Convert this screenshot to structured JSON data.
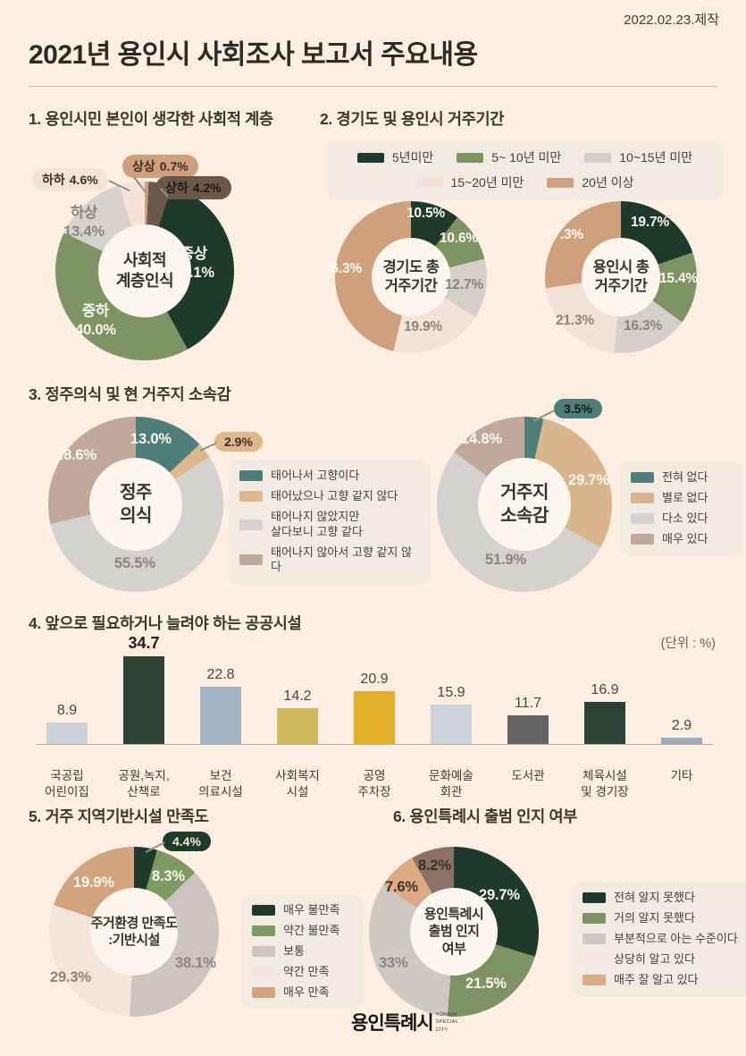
{
  "header": {
    "date": "2022.02.23.제작",
    "title": "2021년 용인시 사회조사 보고서 주요내용"
  },
  "sections": {
    "s1": {
      "heading": "1. 용인시민 본인이 생각한 사회적 계층"
    },
    "s2": {
      "heading": "2. 경기도 및 용인시 거주기간"
    },
    "s3": {
      "heading": "3. 정주의식 및 현 거주지 소속감"
    },
    "s4": {
      "heading": "4. 앞으로 필요하거나 늘려야 하는 공공시설",
      "unit": "(단위 : %)"
    },
    "s5": {
      "heading": "5. 거주 지역기반시설 만족도"
    },
    "s6": {
      "heading": "6. 용인특례시 출범 인지 여부"
    }
  },
  "chart_data": [
    {
      "id": "social-class",
      "type": "donut",
      "title": "사회적 계층인식",
      "center": [
        "사회적",
        "계층인식"
      ],
      "segments": [
        {
          "label": "상상",
          "value": 0.7,
          "pct": "0.7%",
          "color": "#cfa07e"
        },
        {
          "label": "상하",
          "value": 4.2,
          "pct": "4.2%",
          "color": "#6b5848"
        },
        {
          "label": "중상",
          "value": 37.1,
          "pct": "37.1%",
          "color": "#1e3a2c"
        },
        {
          "label": "중하",
          "value": 40.0,
          "pct": "40.0%",
          "color": "#7e9465"
        },
        {
          "label": "하상",
          "value": 13.4,
          "pct": "13.4%",
          "color": "#d8d2ce"
        },
        {
          "label": "하하",
          "value": 4.6,
          "pct": "4.6%",
          "color": "#f5e3da"
        }
      ]
    },
    {
      "id": "gyeonggi-residence",
      "type": "donut",
      "title": "경기도 총 거주기간",
      "center": [
        "경기도 총",
        "거주기간"
      ],
      "segments": [
        {
          "label": "5년미만",
          "value": 10.5,
          "pct": "10.5%",
          "color": "#1e3a2c"
        },
        {
          "label": "5~ 10년 미만",
          "value": 10.6,
          "pct": "10.6%",
          "color": "#7d9363"
        },
        {
          "label": "10~15년 미만",
          "value": 12.7,
          "pct": "12.7%",
          "color": "#d5cfca"
        },
        {
          "label": "15~20년 미만",
          "value": 19.9,
          "pct": "19.9%",
          "color": "#f2e2da"
        },
        {
          "label": "20년 이상",
          "value": 46.3,
          "pct": "46.3%",
          "color": "#cfa07e"
        }
      ],
      "legend": [
        {
          "label": "5년미만",
          "color": "#1e3a2c"
        },
        {
          "label": "5~ 10년 미만",
          "color": "#7d9363"
        },
        {
          "label": "10~15년 미만",
          "color": "#d5cfca"
        },
        {
          "label": "15~20년 미만",
          "color": "#f2e2da"
        },
        {
          "label": "20년 이상",
          "color": "#cfa07e"
        }
      ]
    },
    {
      "id": "yongin-residence",
      "type": "donut",
      "title": "용인시 총 거주기간",
      "center": [
        "용인시 총",
        "거주기간"
      ],
      "segments": [
        {
          "label": "5년미만",
          "value": 19.7,
          "pct": "19.7%",
          "color": "#1e3a2c"
        },
        {
          "label": "5~ 10년 미만",
          "value": 15.4,
          "pct": "15.4%",
          "color": "#7d9363"
        },
        {
          "label": "10~15년 미만",
          "value": 16.3,
          "pct": "16.3%",
          "color": "#d5cfca"
        },
        {
          "label": "15~20년 미만",
          "value": 21.3,
          "pct": "21.3%",
          "color": "#f2e2da"
        },
        {
          "label": "20년 이상",
          "value": 27.3,
          "pct": "27.3%",
          "color": "#cfa07e"
        }
      ]
    },
    {
      "id": "settlement",
      "type": "donut",
      "title": "정주의식",
      "center": [
        "정주",
        "의식"
      ],
      "segments": [
        {
          "label": "태어나서 고향이다",
          "value": 13.0,
          "pct": "13.0%",
          "color": "#4f7e78"
        },
        {
          "label": "태어났으나 고향 같지 않다",
          "value": 2.9,
          "pct": "2.9%",
          "color": "#ddb88e"
        },
        {
          "label": "태어나지 않았지만 살다보니 고향 같다",
          "value": 55.5,
          "pct": "55.5%",
          "color": "#d4d2cf"
        },
        {
          "label": "태어나지 않아서 고향 같지 않다",
          "value": 28.6,
          "pct": "28.6%",
          "color": "#c0a89b"
        }
      ],
      "legend": [
        {
          "label": "태어나서 고향이다",
          "color": "#4f7e78"
        },
        {
          "label": "태어났으나 고향 같지 않다",
          "color": "#ddb88e"
        },
        {
          "label": "태어나지 않았지만\n살다보니 고향 같다",
          "color": "#d4d2cf"
        },
        {
          "label": "태어나지 않아서 고향 같지 않다",
          "color": "#c0a89b"
        }
      ]
    },
    {
      "id": "belonging",
      "type": "donut",
      "title": "거주지 소속감",
      "center": [
        "거주지",
        "소속감"
      ],
      "segments": [
        {
          "label": "전혀 없다",
          "value": 3.5,
          "pct": "3.5%",
          "color": "#4f7e78"
        },
        {
          "label": "별로 없다",
          "value": 29.7,
          "pct": "29.7%",
          "color": "#d9b68e"
        },
        {
          "label": "다소 있다",
          "value": 51.9,
          "pct": "51.9%",
          "color": "#d4d2cf"
        },
        {
          "label": "매우 있다",
          "value": 14.8,
          "pct": "14.8%",
          "color": "#c0a89b"
        }
      ],
      "legend": [
        {
          "label": "전혀 없다",
          "color": "#4f7e78"
        },
        {
          "label": "별로 없다",
          "color": "#d9b68e"
        },
        {
          "label": "다소 있다",
          "color": "#d4d2cf"
        },
        {
          "label": "매우 있다",
          "color": "#c0a89b"
        }
      ]
    },
    {
      "id": "public-facilities",
      "type": "bar",
      "title": "앞으로 필요하거나 늘려야 하는 공공시설",
      "unit": "(단위 : %)",
      "categories": [
        "국공립 어린이집",
        "공원,녹지, 산책로",
        "보건 의료시설",
        "사회복지 시설",
        "공영 주차장",
        "문화예술 회관",
        "도서관",
        "체육시설 및 경기장",
        "기타"
      ],
      "categories_lines": [
        [
          "국공립",
          "어린이집"
        ],
        [
          "공원,녹지,",
          "산책로"
        ],
        [
          "보건",
          "의료시설"
        ],
        [
          "사회복지",
          "시설"
        ],
        [
          "공영",
          "주차장"
        ],
        [
          "문화예술",
          "회관"
        ],
        [
          "도서관"
        ],
        [
          "체육시설",
          "및 경기장"
        ],
        [
          "기타"
        ]
      ],
      "values": [
        8.9,
        34.7,
        22.8,
        14.2,
        20.9,
        15.9,
        11.7,
        16.9,
        2.9
      ],
      "value_labels": [
        "8.9",
        "34.7",
        "22.8",
        "14.2",
        "20.9",
        "15.9",
        "11.7",
        "16.9",
        "2.9"
      ],
      "colors": [
        "#cdd2d8",
        "#2d4338",
        "#9fb3c3",
        "#d2bb5d",
        "#e3b02c",
        "#ced3da",
        "#656361",
        "#2d4338",
        "#97acbc"
      ],
      "ylim": [
        0,
        40
      ]
    },
    {
      "id": "infra-satisfaction",
      "type": "donut",
      "title": "주거환경 만족도 :기반시설",
      "center": [
        "주거환경 만족도",
        ":기반시설"
      ],
      "segments": [
        {
          "label": "매우 불만족",
          "value": 4.4,
          "pct": "4.4%",
          "color": "#1e3a2b"
        },
        {
          "label": "약간 불만족",
          "value": 8.3,
          "pct": "8.3%",
          "color": "#7e9a62"
        },
        {
          "label": "보통",
          "value": 38.1,
          "pct": "38.1%",
          "color": "#cbc4c1"
        },
        {
          "label": "약간 만족",
          "value": 29.3,
          "pct": "29.3%",
          "color": "#f3e4dc"
        },
        {
          "label": "매우 만족",
          "value": 19.9,
          "pct": "19.9%",
          "color": "#d2a47e"
        }
      ],
      "legend": [
        {
          "label": "매우 불만족",
          "color": "#1e3a2b"
        },
        {
          "label": "약간 불만족",
          "color": "#7e9a62"
        },
        {
          "label": "보통",
          "color": "#cbc4c1"
        },
        {
          "label": "약간 만족",
          "color": "#f3e4dc"
        },
        {
          "label": "매우 만족",
          "color": "#d2a47e"
        }
      ]
    },
    {
      "id": "special-city-awareness",
      "type": "donut",
      "title": "용인특례시 출범 인지 여부",
      "center": [
        "용인특례시",
        "출범 인지",
        "여부"
      ],
      "segments": [
        {
          "label": "전혀 알지 못했다",
          "value": 29.7,
          "pct": "29.7%",
          "color": "#1e3a2c"
        },
        {
          "label": "거의 알지 못했다",
          "value": 21.5,
          "pct": "21.5%",
          "color": "#7d9363"
        },
        {
          "label": "부분적으로 아는 수준이다",
          "value": 33.0,
          "pct": "33%",
          "color": "#cfc9c4"
        },
        {
          "label": "상당히 알고 있다",
          "value": 7.6,
          "pct": "7.6%",
          "color": "#dcaa85"
        },
        {
          "label": "매주 잘 알고 있다",
          "value": 8.2,
          "pct": "8.2%",
          "color": "#8b7264"
        }
      ],
      "legend": [
        {
          "label": "전혀 알지 못했다",
          "color": "#1e3a2c"
        },
        {
          "label": "거의 알지 못했다",
          "color": "#7d9363"
        },
        {
          "label": "부분적으로 아는 수준이다",
          "color": "#cfc9c4"
        },
        {
          "label": "상당히 알고 있다",
          "color": "#f7e6de"
        },
        {
          "label": "매주 잘 알고 있다",
          "color": "#dcab88"
        }
      ]
    }
  ],
  "footer": {
    "logo_main": "용인특례시",
    "logo_sub": "YONGIN SPECIAL CITY"
  }
}
